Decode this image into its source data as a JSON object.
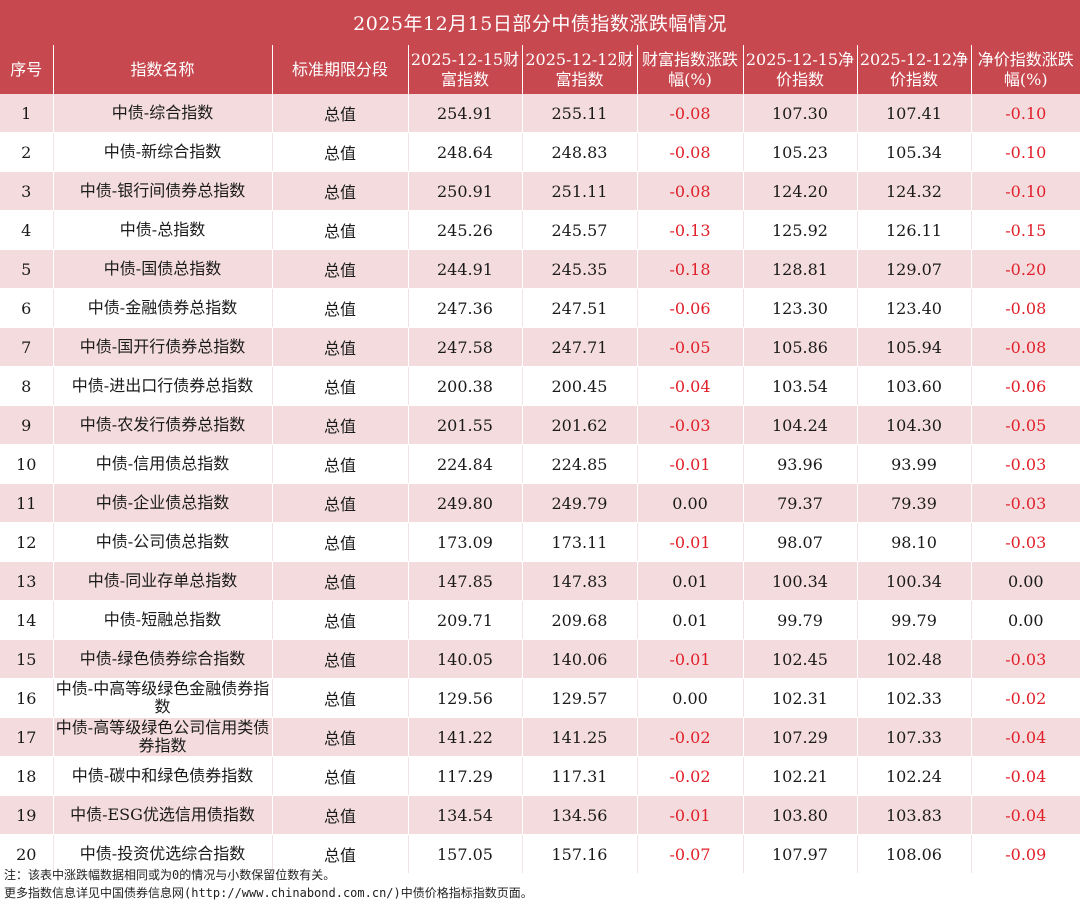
{
  "title": "2025年12月15日部分中债指数涨跌幅情况",
  "headers": {
    "no": "序号",
    "name": "指数名称",
    "term": "标准期限分段",
    "wealth_today": "2025-12-15财富指数",
    "wealth_prev": "2025-12-12财富指数",
    "wealth_change": "财富指数涨跌幅(%)",
    "net_today": "2025-12-15净价指数",
    "net_prev": "2025-12-12净价指数",
    "net_change": "净价指数涨跌幅(%)"
  },
  "colors": {
    "header_bg": "#c8484f",
    "stripe_bg": "#f4dcde",
    "negative_text": "#e0202a"
  },
  "rows": [
    {
      "no": "1",
      "name": "中债-综合指数",
      "term": "总值",
      "w1": "254.91",
      "w2": "255.11",
      "wc": "-0.08",
      "n1": "107.30",
      "n2": "107.41",
      "nc": "-0.10"
    },
    {
      "no": "2",
      "name": "中债-新综合指数",
      "term": "总值",
      "w1": "248.64",
      "w2": "248.83",
      "wc": "-0.08",
      "n1": "105.23",
      "n2": "105.34",
      "nc": "-0.10"
    },
    {
      "no": "3",
      "name": "中债-银行间债券总指数",
      "term": "总值",
      "w1": "250.91",
      "w2": "251.11",
      "wc": "-0.08",
      "n1": "124.20",
      "n2": "124.32",
      "nc": "-0.10"
    },
    {
      "no": "4",
      "name": "中债-总指数",
      "term": "总值",
      "w1": "245.26",
      "w2": "245.57",
      "wc": "-0.13",
      "n1": "125.92",
      "n2": "126.11",
      "nc": "-0.15"
    },
    {
      "no": "5",
      "name": "中债-国债总指数",
      "term": "总值",
      "w1": "244.91",
      "w2": "245.35",
      "wc": "-0.18",
      "n1": "128.81",
      "n2": "129.07",
      "nc": "-0.20"
    },
    {
      "no": "6",
      "name": "中债-金融债券总指数",
      "term": "总值",
      "w1": "247.36",
      "w2": "247.51",
      "wc": "-0.06",
      "n1": "123.30",
      "n2": "123.40",
      "nc": "-0.08"
    },
    {
      "no": "7",
      "name": "中债-国开行债券总指数",
      "term": "总值",
      "w1": "247.58",
      "w2": "247.71",
      "wc": "-0.05",
      "n1": "105.86",
      "n2": "105.94",
      "nc": "-0.08"
    },
    {
      "no": "8",
      "name": "中债-进出口行债券总指数",
      "term": "总值",
      "w1": "200.38",
      "w2": "200.45",
      "wc": "-0.04",
      "n1": "103.54",
      "n2": "103.60",
      "nc": "-0.06"
    },
    {
      "no": "9",
      "name": "中债-农发行债券总指数",
      "term": "总值",
      "w1": "201.55",
      "w2": "201.62",
      "wc": "-0.03",
      "n1": "104.24",
      "n2": "104.30",
      "nc": "-0.05"
    },
    {
      "no": "10",
      "name": "中债-信用债总指数",
      "term": "总值",
      "w1": "224.84",
      "w2": "224.85",
      "wc": "-0.01",
      "n1": "93.96",
      "n2": "93.99",
      "nc": "-0.03"
    },
    {
      "no": "11",
      "name": "中债-企业债总指数",
      "term": "总值",
      "w1": "249.80",
      "w2": "249.79",
      "wc": "0.00",
      "n1": "79.37",
      "n2": "79.39",
      "nc": "-0.03"
    },
    {
      "no": "12",
      "name": "中债-公司债总指数",
      "term": "总值",
      "w1": "173.09",
      "w2": "173.11",
      "wc": "-0.01",
      "n1": "98.07",
      "n2": "98.10",
      "nc": "-0.03"
    },
    {
      "no": "13",
      "name": "中债-同业存单总指数",
      "term": "总值",
      "w1": "147.85",
      "w2": "147.83",
      "wc": "0.01",
      "n1": "100.34",
      "n2": "100.34",
      "nc": "0.00"
    },
    {
      "no": "14",
      "name": "中债-短融总指数",
      "term": "总值",
      "w1": "209.71",
      "w2": "209.68",
      "wc": "0.01",
      "n1": "99.79",
      "n2": "99.79",
      "nc": "0.00"
    },
    {
      "no": "15",
      "name": "中债-绿色债券综合指数",
      "term": "总值",
      "w1": "140.05",
      "w2": "140.06",
      "wc": "-0.01",
      "n1": "102.45",
      "n2": "102.48",
      "nc": "-0.03"
    },
    {
      "no": "16",
      "name": "中债-中高等级绿色金融债券指数",
      "term": "总值",
      "w1": "129.56",
      "w2": "129.57",
      "wc": "0.00",
      "n1": "102.31",
      "n2": "102.33",
      "nc": "-0.02"
    },
    {
      "no": "17",
      "name": "中债-高等级绿色公司信用类债券指数",
      "term": "总值",
      "w1": "141.22",
      "w2": "141.25",
      "wc": "-0.02",
      "n1": "107.29",
      "n2": "107.33",
      "nc": "-0.04"
    },
    {
      "no": "18",
      "name": "中债-碳中和绿色债券指数",
      "term": "总值",
      "w1": "117.29",
      "w2": "117.31",
      "wc": "-0.02",
      "n1": "102.21",
      "n2": "102.24",
      "nc": "-0.04"
    },
    {
      "no": "19",
      "name": "中债-ESG优选信用债指数",
      "term": "总值",
      "w1": "134.54",
      "w2": "134.56",
      "wc": "-0.01",
      "n1": "103.80",
      "n2": "103.83",
      "nc": "-0.04"
    },
    {
      "no": "20",
      "name": "中债-投资优选综合指数",
      "term": "总值",
      "w1": "157.05",
      "w2": "157.16",
      "wc": "-0.07",
      "n1": "107.97",
      "n2": "108.06",
      "nc": "-0.09"
    }
  ],
  "notes": [
    "注：该表中涨跌幅数据相同或为0的情况与小数保留位数有关。",
    "更多指数信息详见中国债券信息网(http://www.chinabond.com.cn/)中债价格指标指数页面。"
  ]
}
